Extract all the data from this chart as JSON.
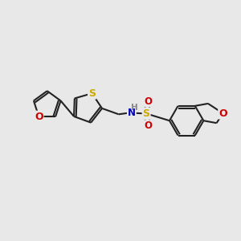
{
  "bg_color": "#e8e8e8",
  "bond_color": "#222222",
  "bond_width": 1.5,
  "atom_colors": {
    "S": "#ccaa00",
    "O": "#cc0000",
    "N": "#0000bb",
    "H": "#888888"
  },
  "fig_width": 3.0,
  "fig_height": 3.0,
  "dpi": 100
}
